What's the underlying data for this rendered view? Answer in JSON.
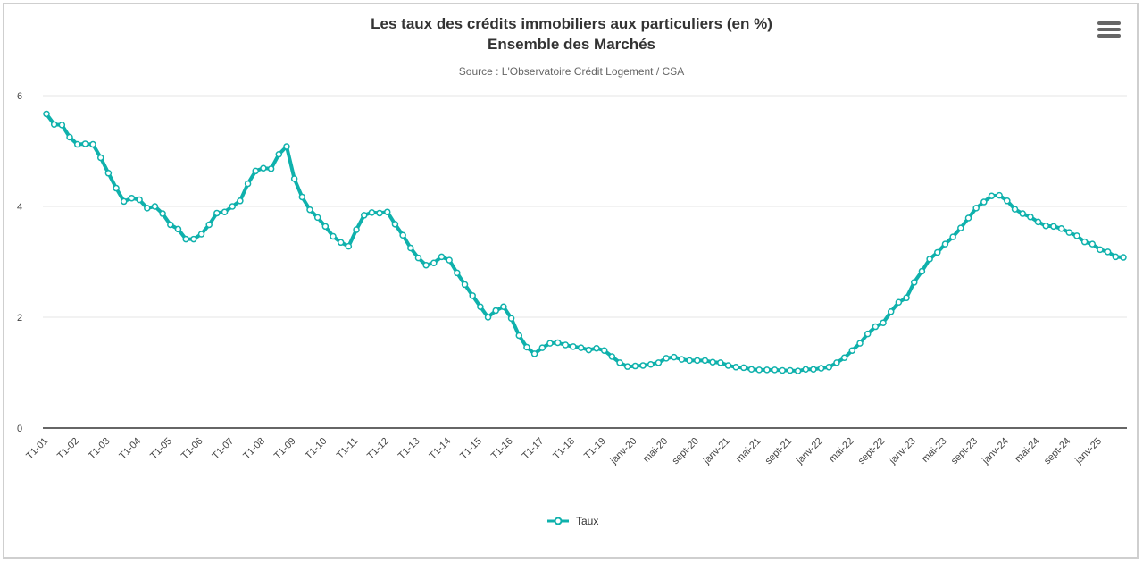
{
  "colors": {
    "series": "#0fb1ac",
    "grid": "#e6e6e6",
    "axis": "#333333",
    "menu": "#666666"
  },
  "menu_icon": "hamburger-menu-icon",
  "chart_data": {
    "type": "line",
    "title_line1": "Les taux des crédits immobiliers aux particuliers (en %)",
    "title_line2": "Ensemble des Marchés",
    "subtitle": "Source : L'Observatoire Crédit Logement / CSA",
    "xlabel": "",
    "ylabel": "",
    "ylim": [
      0,
      6
    ],
    "yticks": [
      0,
      2,
      4,
      6
    ],
    "grid": true,
    "legend_placement": "bottom-center",
    "categories": [
      "T1-01",
      "T2-01",
      "T3-01",
      "T4-01",
      "T1-02",
      "T2-02",
      "T3-02",
      "T4-02",
      "T1-03",
      "T2-03",
      "T3-03",
      "T4-03",
      "T1-04",
      "T2-04",
      "T3-04",
      "T4-04",
      "T1-05",
      "T2-05",
      "T3-05",
      "T4-05",
      "T1-06",
      "T2-06",
      "T3-06",
      "T4-06",
      "T1-07",
      "T2-07",
      "T3-07",
      "T4-07",
      "T1-08",
      "T2-08",
      "T3-08",
      "T4-08",
      "T1-09",
      "T2-09",
      "T3-09",
      "T4-09",
      "T1-10",
      "T2-10",
      "T3-10",
      "T4-10",
      "T1-11",
      "T2-11",
      "T3-11",
      "T4-11",
      "T1-12",
      "T2-12",
      "T3-12",
      "T4-12",
      "T1-13",
      "T2-13",
      "T3-13",
      "T4-13",
      "T1-14",
      "T2-14",
      "T3-14",
      "T4-14",
      "T1-15",
      "T2-15",
      "T3-15",
      "T4-15",
      "T1-16",
      "T2-16",
      "T3-16",
      "T4-16",
      "T1-17",
      "T2-17",
      "T3-17",
      "T4-17",
      "T1-18",
      "T2-18",
      "T3-18",
      "T4-18",
      "T1-19",
      "T2-19",
      "T3-19",
      "T4-19",
      "janv-20",
      "févr-20",
      "mars-20",
      "avr-20",
      "mai-20",
      "juin-20",
      "juil-20",
      "août-20",
      "sept-20",
      "oct-20",
      "nov-20",
      "déc-20",
      "janv-21",
      "févr-21",
      "mars-21",
      "avr-21",
      "mai-21",
      "juin-21",
      "juil-21",
      "août-21",
      "sept-21",
      "oct-21",
      "nov-21",
      "déc-21",
      "janv-22",
      "févr-22",
      "mars-22",
      "avr-22",
      "mai-22",
      "juin-22",
      "juil-22",
      "août-22",
      "sept-22",
      "oct-22",
      "nov-22",
      "déc-22",
      "janv-23",
      "févr-23",
      "mars-23",
      "avr-23",
      "mai-23",
      "juin-23",
      "juil-23",
      "août-23",
      "sept-23",
      "oct-23",
      "nov-23",
      "déc-23",
      "janv-24",
      "févr-24",
      "mars-24",
      "avr-24",
      "mai-24",
      "juin-24",
      "juil-24",
      "août-24",
      "sept-24",
      "oct-24",
      "nov-24",
      "déc-24",
      "janv-25",
      "févr-25",
      "mars-25",
      "avr-25"
    ],
    "series": [
      {
        "name": "Taux",
        "values": [
          5.67,
          5.48,
          5.47,
          5.25,
          5.12,
          5.13,
          5.12,
          4.88,
          4.6,
          4.33,
          4.09,
          4.15,
          4.12,
          3.97,
          4.0,
          3.87,
          3.67,
          3.59,
          3.41,
          3.41,
          3.5,
          3.67,
          3.88,
          3.9,
          4.0,
          4.1,
          4.41,
          4.64,
          4.69,
          4.68,
          4.94,
          5.08,
          4.5,
          4.17,
          3.94,
          3.8,
          3.64,
          3.46,
          3.35,
          3.28,
          3.58,
          3.84,
          3.89,
          3.88,
          3.9,
          3.68,
          3.48,
          3.25,
          3.07,
          2.94,
          2.98,
          3.09,
          3.03,
          2.8,
          2.59,
          2.39,
          2.19,
          2.0,
          2.12,
          2.19,
          1.98,
          1.67,
          1.46,
          1.34,
          1.45,
          1.53,
          1.54,
          1.5,
          1.47,
          1.45,
          1.41,
          1.44,
          1.4,
          1.29,
          1.18,
          1.11,
          1.12,
          1.13,
          1.15,
          1.18,
          1.26,
          1.28,
          1.24,
          1.22,
          1.22,
          1.22,
          1.19,
          1.18,
          1.13,
          1.1,
          1.09,
          1.06,
          1.05,
          1.05,
          1.05,
          1.04,
          1.04,
          1.03,
          1.06,
          1.06,
          1.08,
          1.1,
          1.18,
          1.27,
          1.4,
          1.53,
          1.7,
          1.83,
          1.9,
          2.1,
          2.27,
          2.35,
          2.63,
          2.83,
          3.05,
          3.17,
          3.32,
          3.45,
          3.61,
          3.79,
          3.97,
          4.08,
          4.19,
          4.2,
          4.1,
          3.95,
          3.87,
          3.81,
          3.72,
          3.65,
          3.64,
          3.6,
          3.53,
          3.47,
          3.36,
          3.32,
          3.22,
          3.18,
          3.09,
          3.08
        ]
      }
    ],
    "x_tick_every": 4
  }
}
